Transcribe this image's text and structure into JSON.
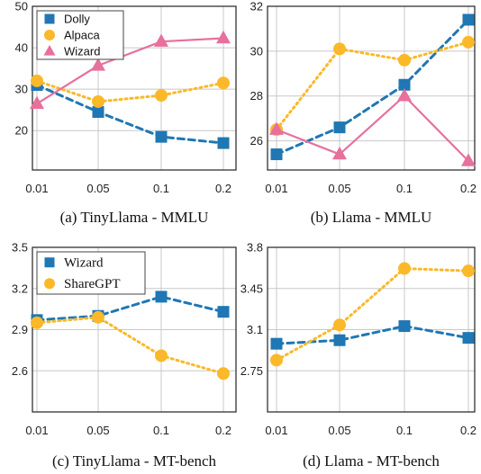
{
  "colors": {
    "blue": "#1f77b4",
    "orange": "#fbb829",
    "pink": "#e7709d",
    "grid": "#c8c8c8",
    "frame": "#222222"
  },
  "chart_data": [
    {
      "type": "line",
      "caption": "(a) TinyLlama - MMLU",
      "categories": [
        "0.01",
        "0.05",
        "0.1",
        "0.2"
      ],
      "yticks": [
        20,
        30,
        40,
        50
      ],
      "ylim": [
        10.5,
        50
      ],
      "legend": "top-left",
      "grid": true,
      "series": [
        {
          "name": "Dolly",
          "color": "#1f77b4",
          "marker": "square",
          "line": "dashed",
          "values": [
            31.0,
            24.5,
            18.5,
            17.0
          ]
        },
        {
          "name": "Alpaca",
          "color": "#fbb829",
          "marker": "circle",
          "line": "dotted",
          "values": [
            32.0,
            27.0,
            28.5,
            31.5
          ]
        },
        {
          "name": "Wizard",
          "color": "#e7709d",
          "marker": "triangle",
          "line": "solid",
          "values": [
            26.5,
            35.7,
            41.5,
            42.3
          ]
        }
      ]
    },
    {
      "type": "line",
      "caption": "(b) Llama - MMLU",
      "categories": [
        "0.01",
        "0.05",
        "0.1",
        "0.2"
      ],
      "yticks": [
        26,
        28,
        30,
        32
      ],
      "ylim": [
        24.7,
        32
      ],
      "legend": "none",
      "grid": true,
      "series": [
        {
          "name": "Dolly",
          "color": "#1f77b4",
          "marker": "square",
          "line": "dashed",
          "values": [
            25.4,
            26.6,
            28.5,
            31.4
          ]
        },
        {
          "name": "Alpaca",
          "color": "#fbb829",
          "marker": "circle",
          "line": "dotted",
          "values": [
            26.5,
            30.1,
            29.6,
            30.4
          ]
        },
        {
          "name": "Wizard",
          "color": "#e7709d",
          "marker": "triangle",
          "line": "solid",
          "values": [
            26.5,
            25.4,
            28.0,
            25.1
          ]
        }
      ]
    },
    {
      "type": "line",
      "caption": "(c) TinyLlama - MT-bench",
      "categories": [
        "0.01",
        "0.05",
        "0.1",
        "0.2"
      ],
      "yticks": [
        "2.6",
        "2.9",
        "3.2",
        "3.5"
      ],
      "ylim": [
        2.3,
        3.5
      ],
      "legend": "top-left",
      "grid": true,
      "series": [
        {
          "name": "Wizard",
          "color": "#1f77b4",
          "marker": "square",
          "line": "dashed",
          "values": [
            2.97,
            3.0,
            3.14,
            3.03
          ]
        },
        {
          "name": "ShareGPT",
          "color": "#fbb829",
          "marker": "circle",
          "line": "dotted",
          "values": [
            2.95,
            2.99,
            2.71,
            2.58
          ]
        }
      ]
    },
    {
      "type": "line",
      "caption": "(d) Llama - MT-bench",
      "categories": [
        "0.01",
        "0.05",
        "0.1",
        "0.2"
      ],
      "yticks": [
        "2.75",
        "3.1",
        "3.45",
        "3.8"
      ],
      "ylim": [
        2.4,
        3.8
      ],
      "legend": "none",
      "grid": true,
      "series": [
        {
          "name": "Wizard",
          "color": "#1f77b4",
          "marker": "square",
          "line": "dashed",
          "values": [
            2.98,
            3.01,
            3.13,
            3.03
          ]
        },
        {
          "name": "ShareGPT",
          "color": "#fbb829",
          "marker": "circle",
          "line": "dotted",
          "values": [
            2.84,
            3.14,
            3.62,
            3.6
          ]
        }
      ]
    }
  ]
}
